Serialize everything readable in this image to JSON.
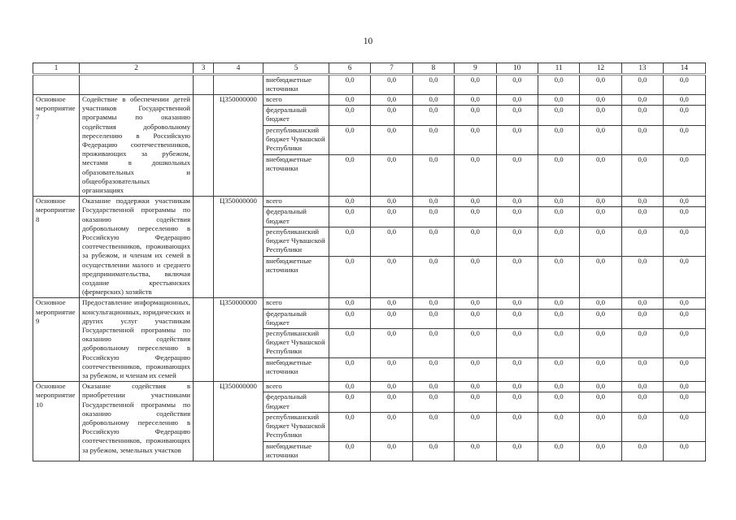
{
  "page": {
    "number": "10"
  },
  "table": {
    "column_headers": [
      "1",
      "2",
      "3",
      "4",
      "5",
      "6",
      "7",
      "8",
      "9",
      "10",
      "11",
      "12",
      "13",
      "14"
    ],
    "carryover_row": {
      "source": "внебюджетные источники",
      "values": [
        "0,0",
        "0,0",
        "0,0",
        "0,0",
        "0,0",
        "0,0",
        "0,0",
        "0,0",
        "0,0"
      ]
    },
    "blocks": [
      {
        "activity": "Основное мероприятие 7",
        "description": "Содействие в обеспечении детей участников Государственной программы по оказанию содействия добровольному переселению в Российскую Федерацию соотечественников, проживающих за рубежом, местами в дошкольных образовательных и общеобразовательных организациях",
        "code": "Ц350000000",
        "rows": [
          {
            "source": "всего",
            "values": [
              "0,0",
              "0,0",
              "0,0",
              "0,0",
              "0,0",
              "0,0",
              "0,0",
              "0,0",
              "0,0"
            ]
          },
          {
            "source": "федеральный бюджет",
            "values": [
              "0,0",
              "0,0",
              "0,0",
              "0,0",
              "0,0",
              "0,0",
              "0,0",
              "0,0",
              "0,0"
            ]
          },
          {
            "source": "республиканский бюджет Чувашской Республики",
            "values": [
              "0,0",
              "0,0",
              "0,0",
              "0,0",
              "0,0",
              "0,0",
              "0,0",
              "0,0",
              "0,0"
            ]
          },
          {
            "source": "внебюджетные источники",
            "values": [
              "0,0",
              "0,0",
              "0,0",
              "0,0",
              "0,0",
              "0,0",
              "0,0",
              "0,0",
              "0,0"
            ]
          }
        ]
      },
      {
        "activity": "Основное мероприятие 8",
        "description": "Оказание поддержки участникам Государственной программы по оказанию содействия добровольному переселению в Российскую Федерацию соотечественников, проживающих за рубежом, и членам их семей в осуществлении малого и среднего предпринимательства, включая создание крестьянских (фермерских) хозяйств",
        "code": "Ц350000000",
        "rows": [
          {
            "source": "всего",
            "values": [
              "0,0",
              "0,0",
              "0,0",
              "0,0",
              "0,0",
              "0,0",
              "0,0",
              "0,0",
              "0,0"
            ]
          },
          {
            "source": "федеральный бюджет",
            "values": [
              "0,0",
              "0,0",
              "0,0",
              "0,0",
              "0,0",
              "0,0",
              "0,0",
              "0,0",
              "0,0"
            ]
          },
          {
            "source": "республиканский бюджет Чувашской Республики",
            "values": [
              "0,0",
              "0,0",
              "0,0",
              "0,0",
              "0,0",
              "0,0",
              "0,0",
              "0,0",
              "0,0"
            ]
          },
          {
            "source": "внебюджетные источники",
            "values": [
              "0,0",
              "0,0",
              "0,0",
              "0,0",
              "0,0",
              "0,0",
              "0,0",
              "0,0",
              "0,0"
            ]
          }
        ]
      },
      {
        "activity": "Основное мероприятие 9",
        "description": "Предоставление информационных, консультационных, юридических и других услуг участникам Государственной программы по оказанию содействия добровольному переселению в Российскую Федерацию соотечественников, проживающих за рубежом, и членам их семей",
        "code": "Ц350000000",
        "rows": [
          {
            "source": "всего",
            "values": [
              "0,0",
              "0,0",
              "0,0",
              "0,0",
              "0,0",
              "0,0",
              "0,0",
              "0,0",
              "0,0"
            ]
          },
          {
            "source": "федеральный бюджет",
            "values": [
              "0,0",
              "0,0",
              "0,0",
              "0,0",
              "0,0",
              "0,0",
              "0,0",
              "0,0",
              "0,0"
            ]
          },
          {
            "source": "республиканский бюджет Чувашской Республики",
            "values": [
              "0,0",
              "0,0",
              "0,0",
              "0,0",
              "0,0",
              "0,0",
              "0,0",
              "0,0",
              "0,0"
            ]
          },
          {
            "source": "внебюджетные источники",
            "values": [
              "0,0",
              "0,0",
              "0,0",
              "0,0",
              "0,0",
              "0,0",
              "0,0",
              "0,0",
              "0,0"
            ]
          }
        ]
      },
      {
        "activity": "Основное мероприятие 10",
        "description": "Оказание содействия в приобретении участниками Государственной программы по оказанию содействия добровольному переселению в Российскую Федерацию соотечественников, проживающих за рубежом, земельных участков",
        "code": "Ц350000000",
        "rows": [
          {
            "source": "всего",
            "values": [
              "0,0",
              "0,0",
              "0,0",
              "0,0",
              "0,0",
              "0,0",
              "0,0",
              "0,0",
              "0,0"
            ]
          },
          {
            "source": "федеральный бюджет",
            "values": [
              "0,0",
              "0,0",
              "0,0",
              "0,0",
              "0,0",
              "0,0",
              "0,0",
              "0,0",
              "0,0"
            ]
          },
          {
            "source": "республиканский бюджет Чувашской Республики",
            "values": [
              "0,0",
              "0,0",
              "0,0",
              "0,0",
              "0,0",
              "0,0",
              "0,0",
              "0,0",
              "0,0"
            ]
          },
          {
            "source": "внебюджетные источники",
            "values": [
              "0,0",
              "0,0",
              "0,0",
              "0,0",
              "0,0",
              "0,0",
              "0,0",
              "0,0",
              "0,0"
            ]
          }
        ]
      }
    ]
  }
}
